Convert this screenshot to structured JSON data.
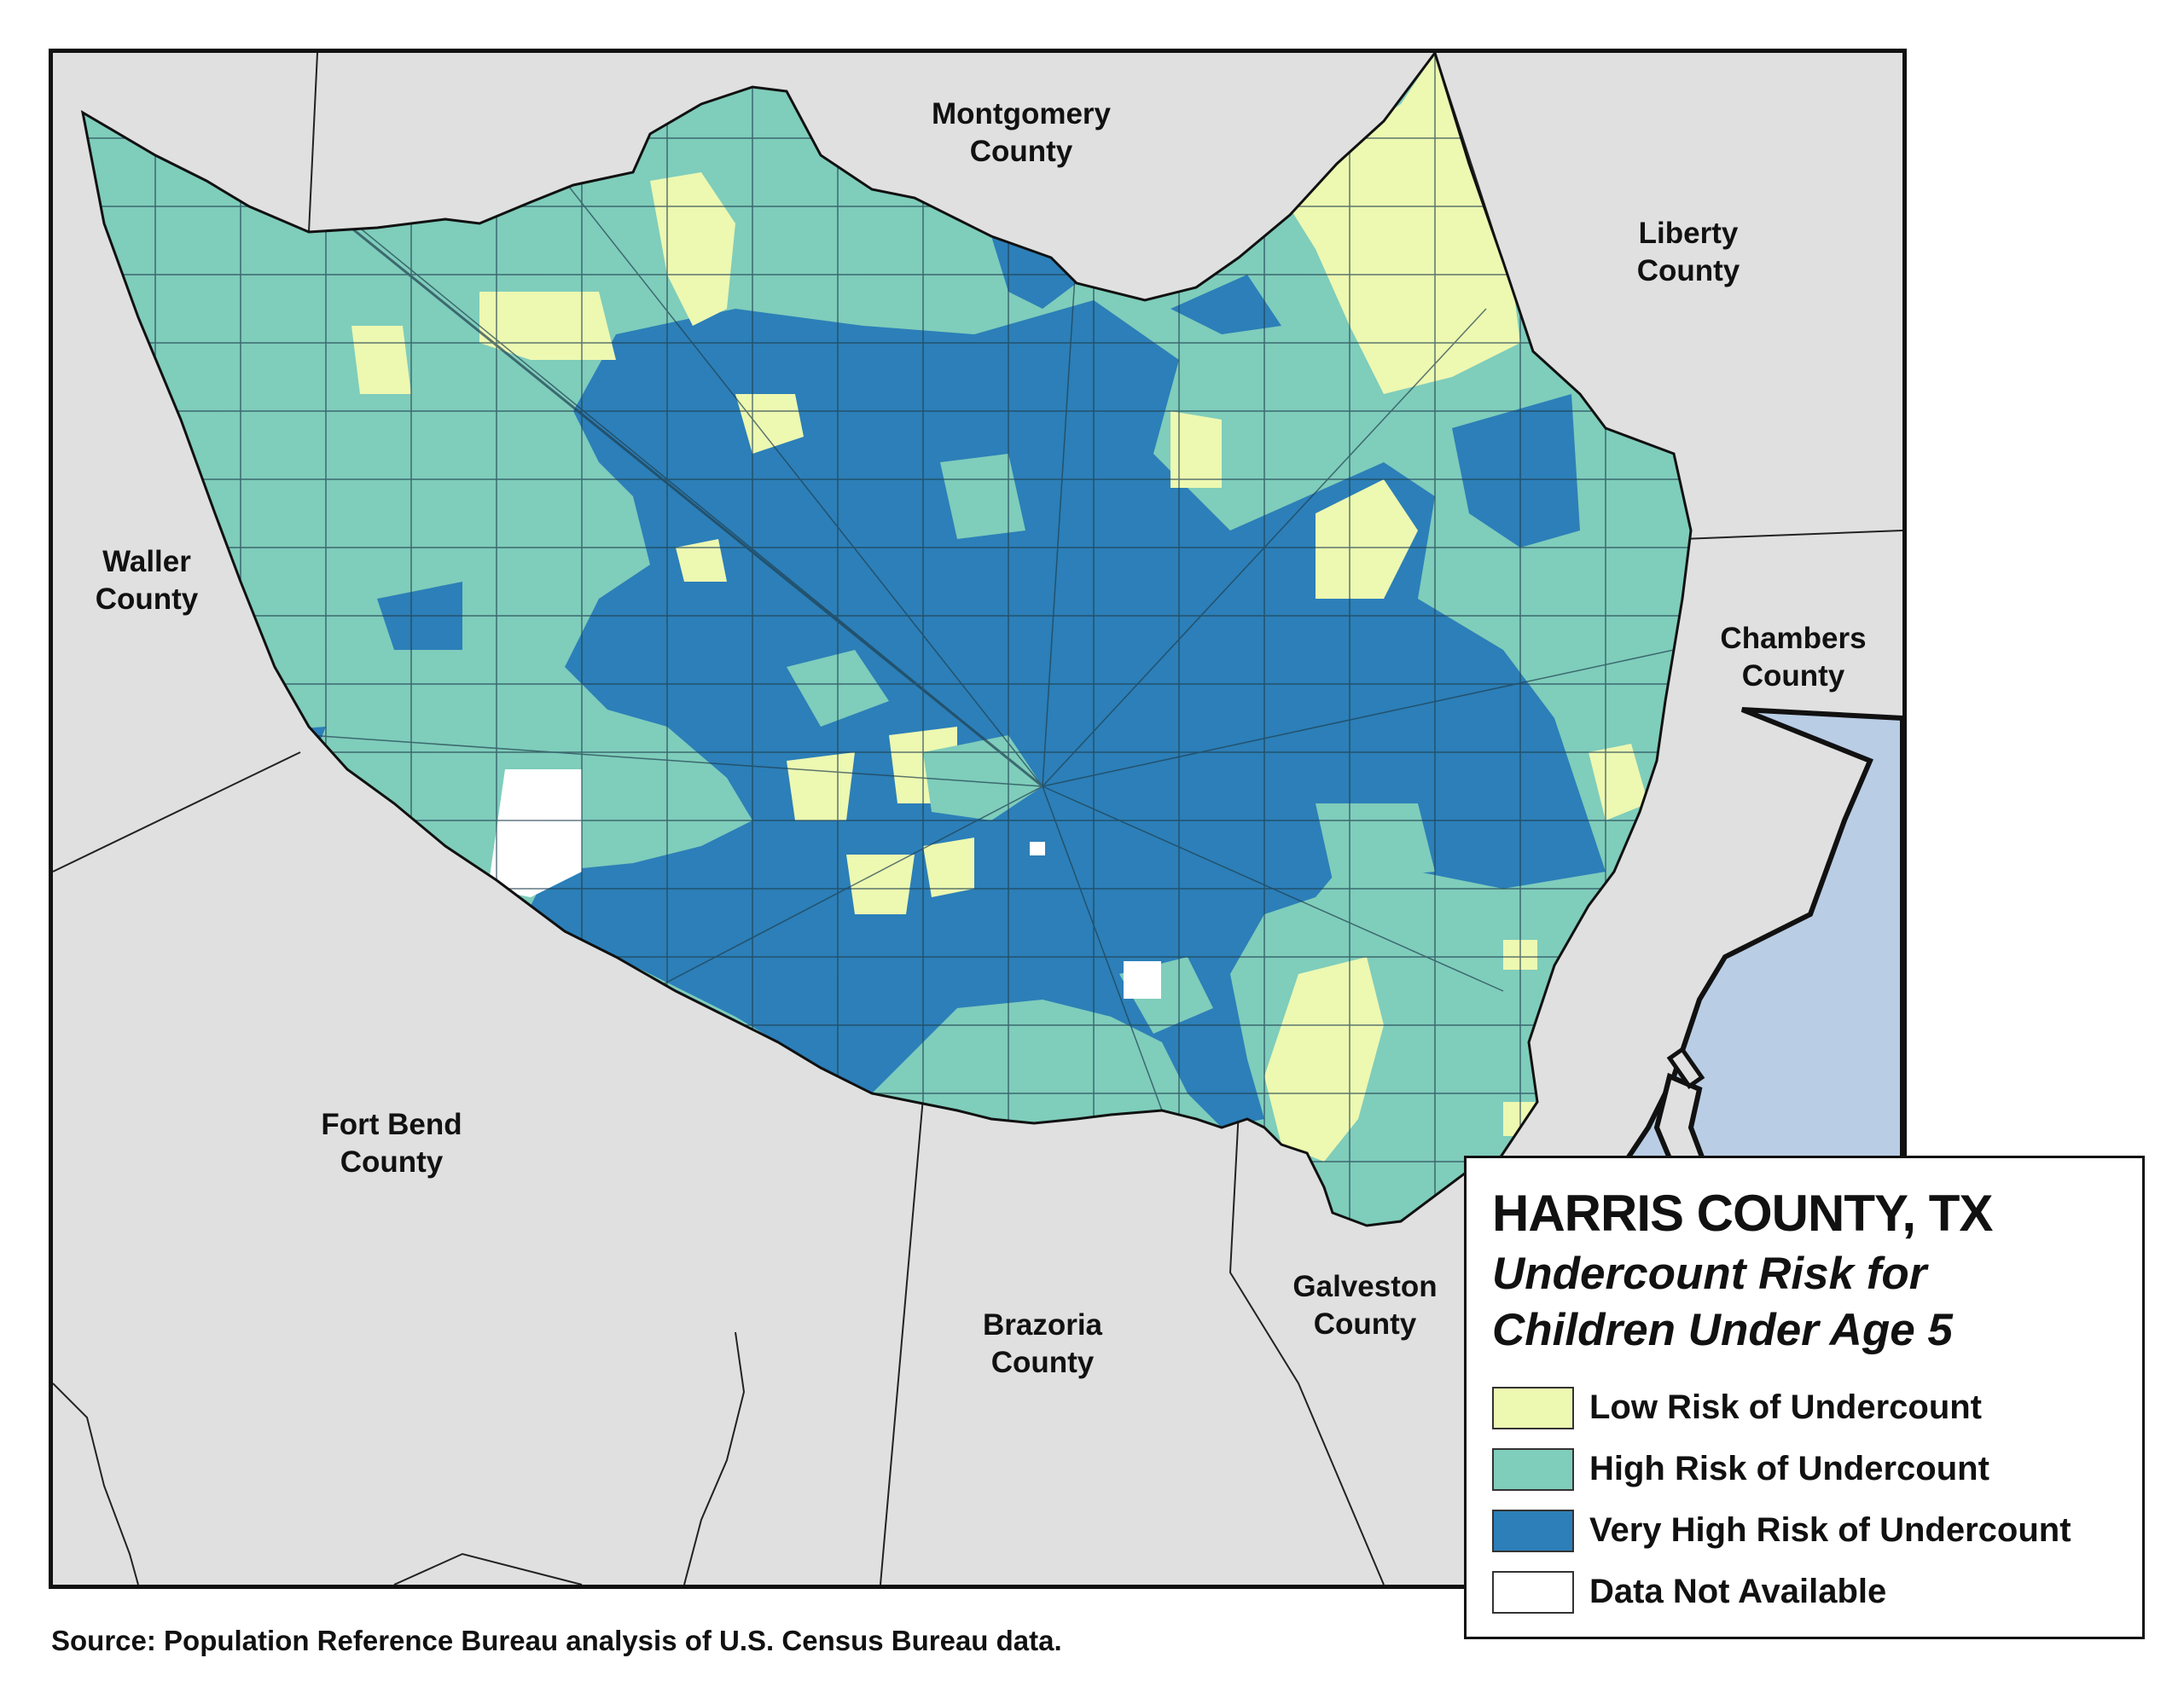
{
  "map": {
    "title": "HARRIS COUNTY, TX",
    "subtitle_line1": "Undercount Risk for",
    "subtitle_line2": "Children Under Age 5",
    "source": "Source: Population Reference Bureau analysis of U.S. Census Bureau data."
  },
  "counties": {
    "montgomery": [
      "Montgomery",
      "County"
    ],
    "liberty": [
      "Liberty",
      "County"
    ],
    "waller": [
      "Waller",
      "County"
    ],
    "chambers": [
      "Chambers",
      "County"
    ],
    "fort_bend": [
      "Fort Bend",
      "County"
    ],
    "brazoria": [
      "Brazoria",
      "County"
    ],
    "galveston": [
      "Galveston",
      "County"
    ]
  },
  "legend": {
    "items": [
      {
        "label": "Low Risk of Undercount",
        "color": "#edf8b1"
      },
      {
        "label": "High Risk of Undercount",
        "color": "#7fcdbb"
      },
      {
        "label": "Very High Risk of Undercount",
        "color": "#2c7fb8"
      },
      {
        "label": "Data Not Available",
        "color": "#ffffff"
      }
    ]
  },
  "colors": {
    "neighbor_county": "#e0e0e0",
    "water": "#b9cde5",
    "low_risk": "#edf8b1",
    "high_risk": "#7fcdbb",
    "very_high_risk": "#2c7fb8",
    "no_data": "#ffffff"
  }
}
